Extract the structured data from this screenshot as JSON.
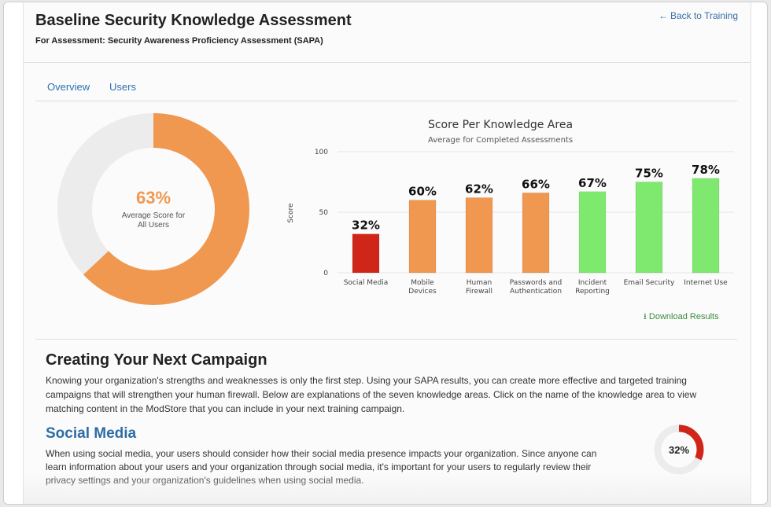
{
  "header": {
    "title": "Baseline Security Knowledge Assessment",
    "subtitle": "For Assessment: Security Awareness Proficiency Assessment (SAPA)",
    "back_link": "Back to Training"
  },
  "tabs": [
    {
      "label": "Overview"
    },
    {
      "label": "Users"
    }
  ],
  "summary": {
    "average_pct": "63%",
    "average_value": 63,
    "average_label": "Average Score for All Users",
    "colors": {
      "fill": "#f0984f",
      "track": "#ececec"
    }
  },
  "chart_data": {
    "type": "bar",
    "title": "Score Per Knowledge Area",
    "subtitle": "Average for Completed Assessments",
    "ylabel": "Score",
    "xlabel": "",
    "ylim": [
      0,
      100
    ],
    "yticks": [
      0,
      50,
      100
    ],
    "categories": [
      {
        "lines": [
          "Social Media"
        ]
      },
      {
        "lines": [
          "Mobile",
          "Devices"
        ]
      },
      {
        "lines": [
          "Human",
          "Firewall"
        ]
      },
      {
        "lines": [
          "Passwords and",
          "Authentication"
        ]
      },
      {
        "lines": [
          "Incident",
          "Reporting"
        ]
      },
      {
        "lines": [
          "Email Security"
        ]
      },
      {
        "lines": [
          "Internet Use"
        ]
      }
    ],
    "values": [
      32,
      60,
      62,
      66,
      67,
      75,
      78
    ],
    "value_labels": [
      "32%",
      "60%",
      "62%",
      "66%",
      "67%",
      "75%",
      "78%"
    ],
    "colors": [
      "#d0261a",
      "#f0984f",
      "#f0984f",
      "#f0984f",
      "#7fe86e",
      "#7fe86e",
      "#7fe86e"
    ]
  },
  "download_label": "Download Results",
  "campaign": {
    "title": "Creating Your Next Campaign",
    "body": "Knowing your organization's strengths and weaknesses is only the first step. Using your SAPA results, you can create more effective and targeted training campaigns that will strengthen your human firewall. Below are explanations of the seven knowledge areas. Click on the name of the knowledge area to view matching content in the ModStore that you can include in your next training campaign."
  },
  "social_media": {
    "title": "Social Media",
    "body": "When using social media, your users should consider how their social media presence impacts your organization. Since anyone can learn information about your users and your organization through social media, it's important for your users to regularly review their privacy settings and your organization's guidelines when using social media.",
    "pct": "32%",
    "value": 32,
    "color": "#d0261a"
  }
}
